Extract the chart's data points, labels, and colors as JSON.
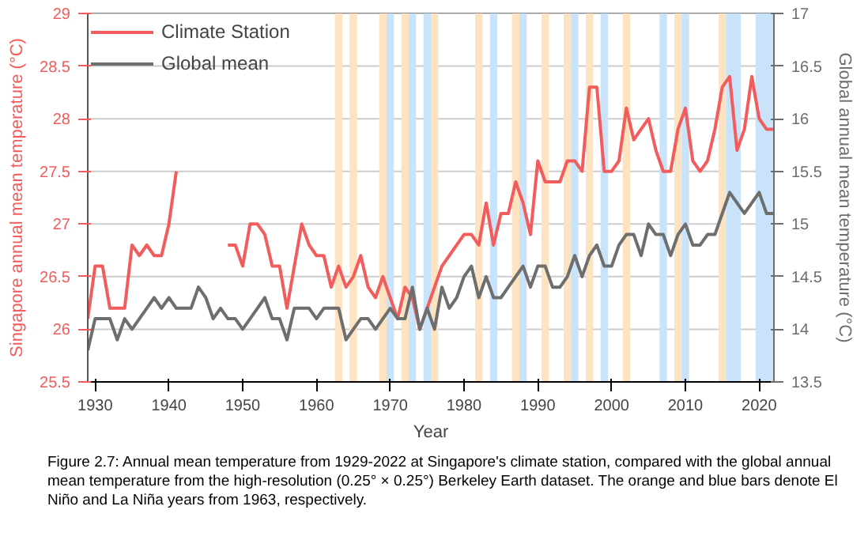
{
  "chart_data": {
    "type": "line",
    "xlabel": "Year",
    "ylabel": "Singapore annual mean temperature (°C)",
    "y2label": "Global annual mean temperature (°C)",
    "x": [
      1929,
      1930,
      1931,
      1932,
      1933,
      1934,
      1935,
      1936,
      1937,
      1938,
      1939,
      1940,
      1941,
      1942,
      1943,
      1944,
      1945,
      1946,
      1947,
      1948,
      1949,
      1950,
      1951,
      1952,
      1953,
      1954,
      1955,
      1956,
      1957,
      1958,
      1959,
      1960,
      1961,
      1962,
      1963,
      1964,
      1965,
      1966,
      1967,
      1968,
      1969,
      1970,
      1971,
      1972,
      1973,
      1974,
      1975,
      1976,
      1977,
      1978,
      1979,
      1980,
      1981,
      1982,
      1983,
      1984,
      1985,
      1986,
      1987,
      1988,
      1989,
      1990,
      1991,
      1992,
      1993,
      1994,
      1995,
      1996,
      1997,
      1998,
      1999,
      2000,
      2001,
      2002,
      2003,
      2004,
      2005,
      2006,
      2007,
      2008,
      2009,
      2010,
      2011,
      2012,
      2013,
      2014,
      2015,
      2016,
      2017,
      2018,
      2019,
      2020,
      2021,
      2022
    ],
    "series": [
      {
        "name": "Climate Station",
        "color": "#f25c5c",
        "values": [
          26.1,
          26.6,
          26.6,
          26.2,
          26.2,
          26.2,
          26.8,
          26.7,
          26.8,
          26.7,
          26.7,
          27.0,
          27.5,
          null,
          null,
          null,
          null,
          null,
          null,
          26.8,
          26.8,
          26.6,
          27.0,
          27.0,
          26.9,
          26.6,
          26.6,
          26.2,
          26.6,
          27.0,
          26.8,
          26.7,
          26.7,
          26.4,
          26.6,
          26.4,
          26.5,
          26.7,
          26.4,
          26.3,
          26.5,
          26.3,
          26.1,
          26.4,
          26.3,
          26.0,
          26.2,
          26.4,
          26.6,
          26.7,
          26.8,
          26.9,
          26.9,
          26.8,
          27.2,
          26.8,
          27.1,
          27.1,
          27.4,
          27.2,
          26.9,
          27.6,
          27.4,
          27.4,
          27.4,
          27.6,
          27.6,
          27.5,
          28.3,
          28.3,
          27.5,
          27.5,
          27.6,
          28.1,
          27.8,
          27.9,
          28.0,
          27.7,
          27.5,
          27.5,
          27.9,
          28.1,
          27.6,
          27.5,
          27.6,
          27.9,
          28.3,
          28.4,
          27.7,
          27.9,
          28.4,
          28.0,
          27.9,
          27.9
        ]
      },
      {
        "name": "Global mean",
        "color": "#6e6e6e",
        "axis": "y2",
        "values": [
          13.8,
          14.1,
          14.1,
          14.1,
          13.9,
          14.1,
          14.0,
          14.1,
          14.2,
          14.3,
          14.2,
          14.3,
          14.2,
          14.2,
          14.2,
          14.4,
          14.3,
          14.1,
          14.2,
          14.1,
          14.1,
          14.0,
          14.1,
          14.2,
          14.3,
          14.1,
          14.1,
          13.9,
          14.2,
          14.2,
          14.2,
          14.1,
          14.2,
          14.2,
          14.2,
          13.9,
          14.0,
          14.1,
          14.1,
          14.0,
          14.1,
          14.2,
          14.1,
          14.1,
          14.4,
          14.0,
          14.2,
          14.0,
          14.4,
          14.2,
          14.3,
          14.5,
          14.6,
          14.3,
          14.5,
          14.3,
          14.3,
          14.4,
          14.5,
          14.6,
          14.4,
          14.6,
          14.6,
          14.4,
          14.4,
          14.5,
          14.7,
          14.5,
          14.7,
          14.8,
          14.6,
          14.6,
          14.8,
          14.9,
          14.9,
          14.7,
          15.0,
          14.9,
          14.9,
          14.7,
          14.9,
          15.0,
          14.8,
          14.8,
          14.9,
          14.9,
          15.1,
          15.3,
          15.2,
          15.1,
          15.2,
          15.3,
          15.1,
          15.1
        ]
      }
    ],
    "xlim": [
      1929,
      2022
    ],
    "xticks": [
      1930,
      1940,
      1950,
      1960,
      1970,
      1980,
      1990,
      2000,
      2010,
      2020
    ],
    "ylim": [
      25.5,
      29
    ],
    "yticks": [
      25.5,
      26,
      26.5,
      27,
      27.5,
      28,
      28.5,
      29
    ],
    "y2lim": [
      13.5,
      17
    ],
    "y2ticks": [
      13.5,
      14,
      14.5,
      15,
      15.5,
      16,
      16.5,
      17
    ],
    "bands": [
      {
        "axis": "x",
        "from": 1962.5,
        "to": 1963.5,
        "color": "#fde3c0"
      },
      {
        "axis": "x",
        "from": 1964.5,
        "to": 1965.5,
        "color": "#fde3c0"
      },
      {
        "axis": "x",
        "from": 1968.5,
        "to": 1969.5,
        "color": "#fde3c0"
      },
      {
        "axis": "x",
        "from": 1969.5,
        "to": 1970.5,
        "color": "#c9e4fa"
      },
      {
        "axis": "x",
        "from": 1971.5,
        "to": 1972.5,
        "color": "#fde3c0"
      },
      {
        "axis": "x",
        "from": 1972.5,
        "to": 1973.5,
        "color": "#c9e4fa"
      },
      {
        "axis": "x",
        "from": 1974.5,
        "to": 1975.5,
        "color": "#c9e4fa"
      },
      {
        "axis": "x",
        "from": 1975.5,
        "to": 1976.5,
        "color": "#fde3c0"
      },
      {
        "axis": "x",
        "from": 1981.5,
        "to": 1982.5,
        "color": "#fde3c0"
      },
      {
        "axis": "x",
        "from": 1983.5,
        "to": 1984.5,
        "color": "#c9e4fa"
      },
      {
        "axis": "x",
        "from": 1986.5,
        "to": 1987.5,
        "color": "#fde3c0"
      },
      {
        "axis": "x",
        "from": 1987.5,
        "to": 1988.5,
        "color": "#c9e4fa"
      },
      {
        "axis": "x",
        "from": 1990.5,
        "to": 1991.5,
        "color": "#fde3c0"
      },
      {
        "axis": "x",
        "from": 1993.5,
        "to": 1994.5,
        "color": "#fde3c0"
      },
      {
        "axis": "x",
        "from": 1994.5,
        "to": 1995.5,
        "color": "#c9e4fa"
      },
      {
        "axis": "x",
        "from": 1996.5,
        "to": 1997.5,
        "color": "#fde3c0"
      },
      {
        "axis": "x",
        "from": 1998.5,
        "to": 1999.5,
        "color": "#c9e4fa"
      },
      {
        "axis": "x",
        "from": 2001.5,
        "to": 2002.5,
        "color": "#fde3c0"
      },
      {
        "axis": "x",
        "from": 2006.5,
        "to": 2007.5,
        "color": "#c9e4fa"
      },
      {
        "axis": "x",
        "from": 2008.5,
        "to": 2009.5,
        "color": "#fde3c0"
      },
      {
        "axis": "x",
        "from": 2009.5,
        "to": 2010.5,
        "color": "#c9e4fa"
      },
      {
        "axis": "x",
        "from": 2014.5,
        "to": 2015.5,
        "color": "#fde3c0"
      },
      {
        "axis": "x",
        "from": 2015.5,
        "to": 2017.5,
        "color": "#c9e4fa"
      },
      {
        "axis": "x",
        "from": 2019.5,
        "to": 2022,
        "color": "#c9e4fa"
      }
    ],
    "annotations": [
      "Figure 2.7: Annual mean temperature from 1929-2022 at Singapore's climate station, compared with the global annual mean temperature from the high-resolution (0.25° × 0.25°) Berkeley Earth dataset. The orange and blue bars denote El Niño and La Niña years from 1963, respectively."
    ],
    "grid": "y",
    "legend": "top left",
    "marker": "none",
    "line_style": "solid"
  }
}
